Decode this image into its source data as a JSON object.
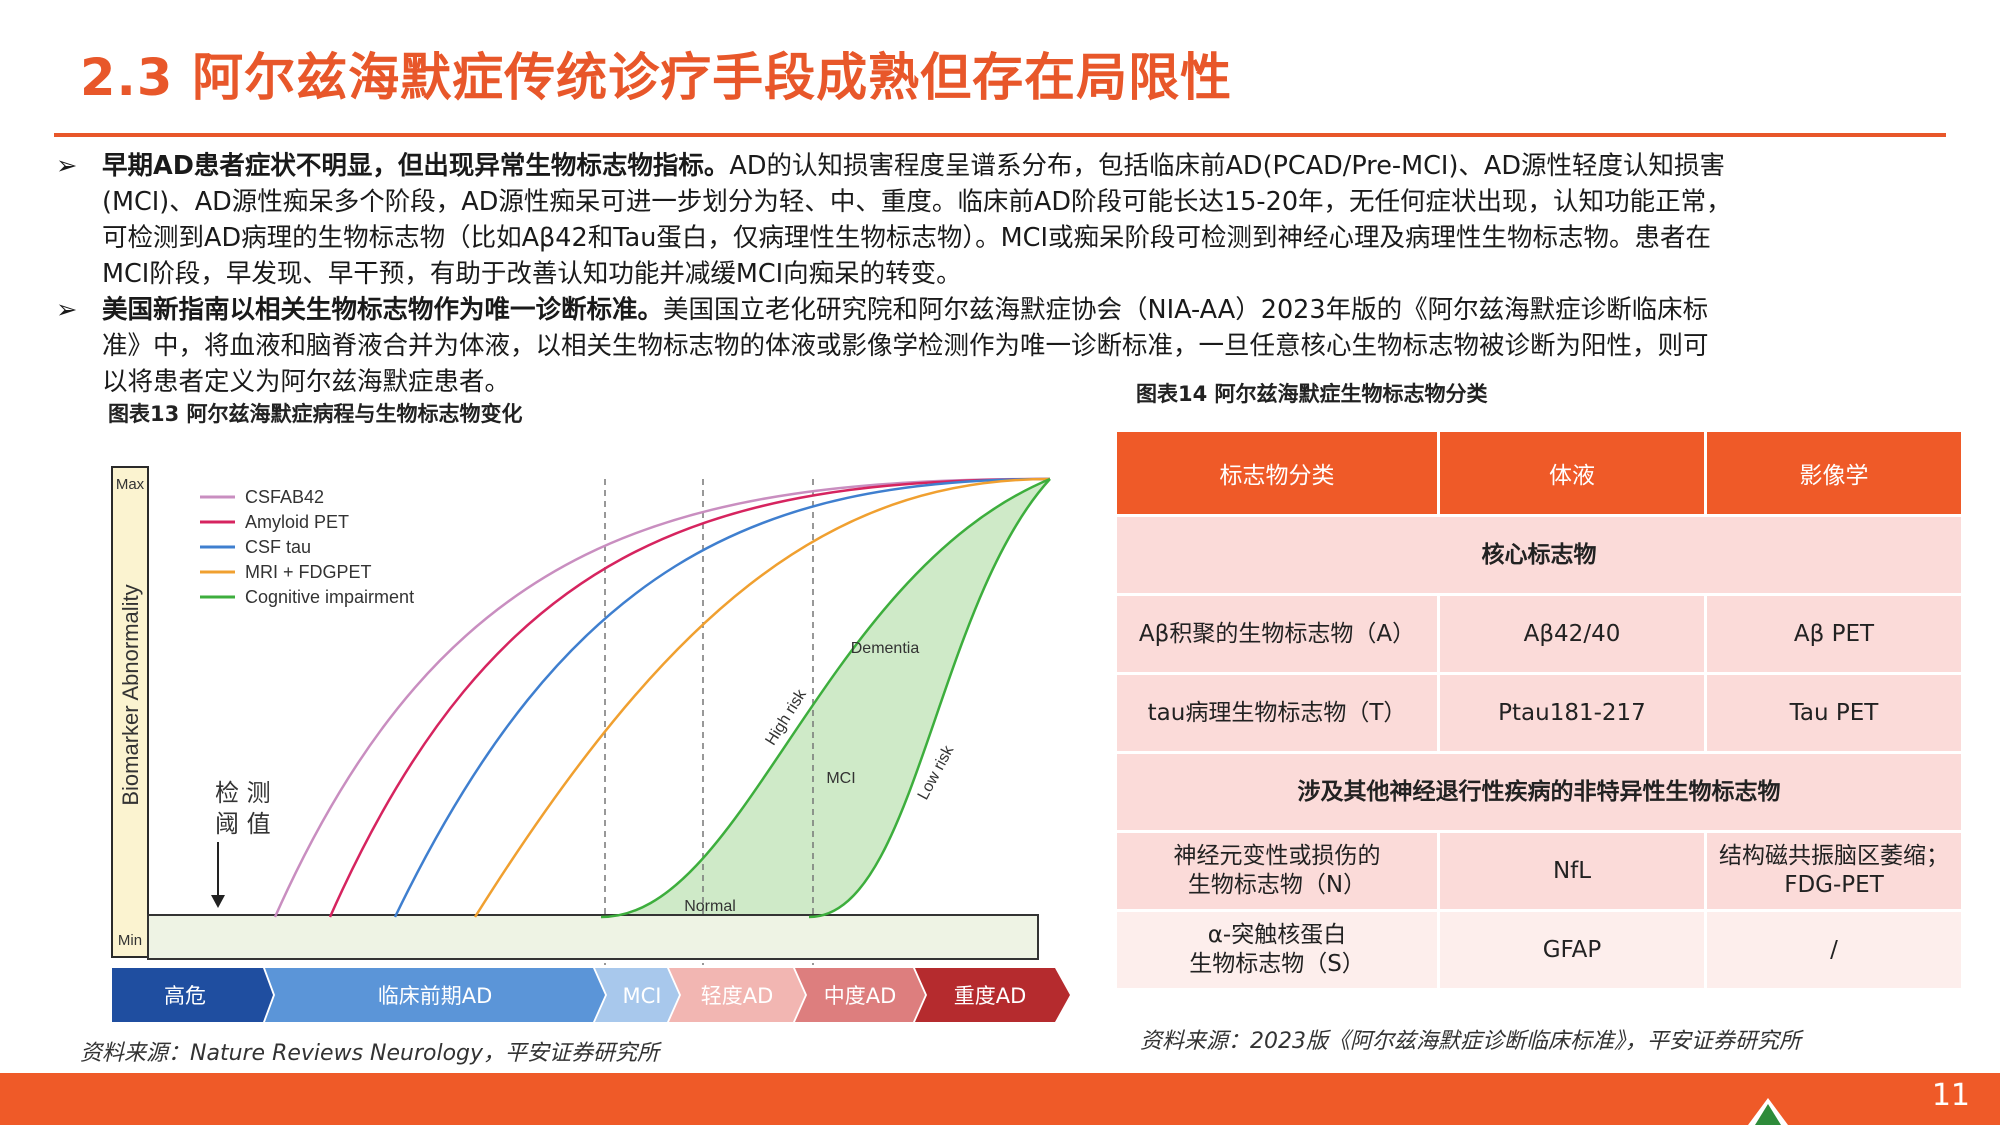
{
  "slide": {
    "title": "2.3 阿尔兹海默症传统诊疗手段成熟但存在局限性",
    "page_number": "11"
  },
  "bullets": [
    {
      "marker": "➢",
      "bold": "早期AD患者症状不明显，但出现异常生物标志物指标。",
      "lines": [
        "AD的认知损害程度呈谱系分布，包括临床前AD(PCAD/Pre-MCI)、AD源性轻度认知损害",
        "(MCI)、AD源性痴呆多个阶段，AD源性痴呆可进一步划分为轻、中、重度。临床前AD阶段可能长达15-20年，无任何症状出现，认知功能正常，",
        "可检测到AD病理的生物标志物（比如Aβ42和Tau蛋白，仅病理性生物标志物）。MCI或痴呆阶段可检测到神经心理及病理性生物标志物。患者在",
        "MCI阶段，早发现、早干预，有助于改善认知功能并减缓MCI向痴呆的转变。"
      ]
    },
    {
      "marker": "➢",
      "bold": "美国新指南以相关生物标志物作为唯一诊断标准。",
      "lines": [
        "美国国立老化研究院和阿尔兹海默症协会（NIA-AA）2023年版的《阿尔兹海默症诊断临床标",
        "准》中，将血液和脑脊液合并为体液，以相关生物标志物的体液或影像学检测作为唯一诊断标准，一旦任意核心生物标志物被诊断为阳性，则可",
        "以将患者定义为阿尔兹海默症患者。"
      ]
    }
  ],
  "figure13": {
    "title": "图表13 阿尔兹海默症病程与生物标志物变化",
    "source": "资料来源：Nature Reviews Neurology，平安证券研究所"
  },
  "figure14": {
    "title": "图表14 阿尔兹海默症生物标志物分类",
    "source": "资料来源：2023版《阿尔兹海默症诊断临床标准》，平安证券研究所"
  },
  "chart_data": {
    "type": "line",
    "ylabel": "Biomarker Abnormality",
    "y_ticks": [
      "Max",
      "Min"
    ],
    "threshold_label": [
      "检 测",
      "阈 值"
    ],
    "series": [
      {
        "name": "CSFAB42",
        "color": "#c98ec0"
      },
      {
        "name": "Amyloid PET",
        "color": "#d6245f"
      },
      {
        "name": "CSF tau",
        "color": "#3f7fcf"
      },
      {
        "name": "MRI + FDGPET",
        "color": "#f0a030"
      },
      {
        "name": "Cognitive impairment",
        "color": "#3dae3d"
      }
    ],
    "annotations": [
      "Dementia",
      "High risk",
      "MCI",
      "Low risk",
      "Normal"
    ],
    "stages": [
      "高危",
      "临床前期AD",
      "MCI",
      "轻度AD",
      "中度AD",
      "重度AD"
    ]
  },
  "table": {
    "headers": [
      "标志物分类",
      "体液",
      "影像学"
    ],
    "sections": [
      {
        "title": "核心标志物",
        "rows": [
          {
            "category": [
              "Aβ积聚的生物标志物（A）"
            ],
            "fluid": "Aβ42/40",
            "imaging": [
              "Aβ PET"
            ]
          },
          {
            "category": [
              "tau病理生物标志物（T）"
            ],
            "fluid": "Ptau181-217",
            "imaging": [
              "Tau PET"
            ]
          }
        ]
      },
      {
        "title": "涉及其他神经退行性疾病的非特异性生物标志物",
        "rows": [
          {
            "category": [
              "神经元变性或损伤的",
              "生物标志物（N）"
            ],
            "fluid": "NfL",
            "imaging": [
              "结构磁共振脑区萎缩；",
              "FDG-PET"
            ]
          },
          {
            "category": [
              "α-突触核蛋白",
              "生物标志物（S）"
            ],
            "fluid": "GFAP",
            "imaging": [
              "/"
            ]
          }
        ]
      }
    ]
  }
}
